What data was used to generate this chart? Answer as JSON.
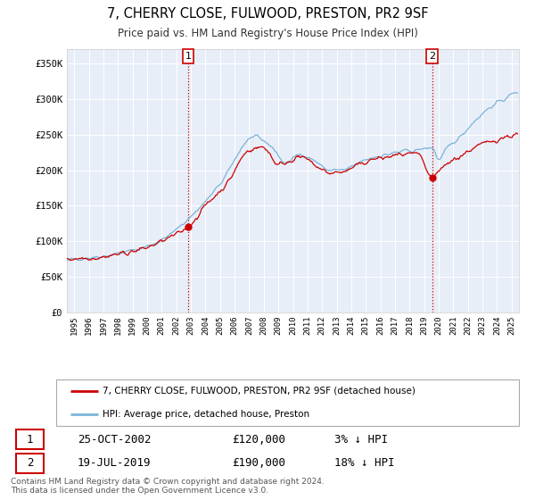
{
  "title": "7, CHERRY CLOSE, FULWOOD, PRESTON, PR2 9SF",
  "subtitle": "Price paid vs. HM Land Registry's House Price Index (HPI)",
  "xlim": [
    1994.5,
    2025.5
  ],
  "ylim": [
    0,
    370000
  ],
  "yticks": [
    0,
    50000,
    100000,
    150000,
    200000,
    250000,
    300000,
    350000
  ],
  "xticks": [
    1995,
    1996,
    1997,
    1998,
    1999,
    2000,
    2001,
    2002,
    2003,
    2004,
    2005,
    2006,
    2007,
    2008,
    2009,
    2010,
    2011,
    2012,
    2013,
    2014,
    2015,
    2016,
    2017,
    2018,
    2019,
    2020,
    2021,
    2022,
    2023,
    2024,
    2025
  ],
  "hpi_color": "#7ab4d8",
  "price_color": "#cc0000",
  "sale1_x": 2002.81,
  "sale1_y": 120000,
  "sale2_x": 2019.54,
  "sale2_y": 190000,
  "legend_price_label": "7, CHERRY CLOSE, FULWOOD, PRESTON, PR2 9SF (detached house)",
  "legend_hpi_label": "HPI: Average price, detached house, Preston",
  "table_row1": [
    "1",
    "25-OCT-2002",
    "£120,000",
    "3% ↓ HPI"
  ],
  "table_row2": [
    "2",
    "19-JUL-2019",
    "£190,000",
    "18% ↓ HPI"
  ],
  "footnote1": "Contains HM Land Registry data © Crown copyright and database right 2024.",
  "footnote2": "This data is licensed under the Open Government Licence v3.0.",
  "plot_bg_color": "#e8eef8",
  "grid_color": "#ffffff"
}
